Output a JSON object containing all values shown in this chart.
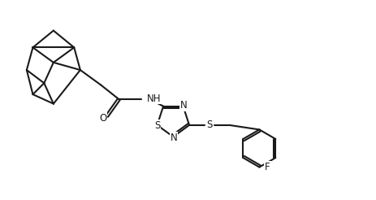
{
  "bg_color": "#ffffff",
  "line_color": "#1a1a1a",
  "line_width": 1.5,
  "font_size": 8.5,
  "fig_width": 4.64,
  "fig_height": 2.46,
  "dpi": 100,
  "xlim": [
    0,
    10
  ],
  "ylim": [
    0,
    5.3
  ]
}
